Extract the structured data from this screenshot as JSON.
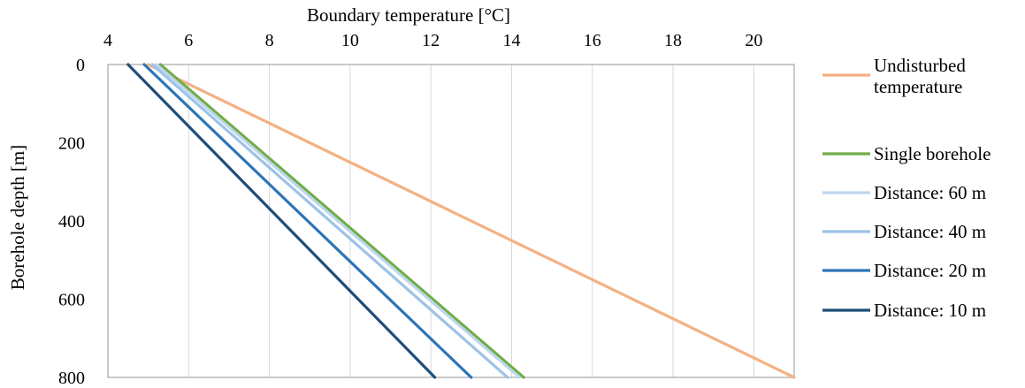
{
  "chart_data": {
    "type": "line",
    "xlabel": "Boundary temperature [°C]",
    "ylabel": "Borehole depth [m]",
    "xlim": [
      4,
      21
    ],
    "ylim": [
      0,
      800
    ],
    "y_reversed": true,
    "x_axis_position": "top",
    "x_ticks": [
      4,
      6,
      8,
      10,
      12,
      14,
      16,
      18,
      20
    ],
    "y_ticks": [
      0,
      200,
      400,
      600,
      800
    ],
    "grid": "vertical",
    "legend_position": "right",
    "series": [
      {
        "name": "Undisturbed temperature",
        "legend_lines": [
          "Undisturbed",
          "temperature"
        ],
        "color": "#f4b183",
        "points": [
          [
            5.0,
            0
          ],
          [
            21.0,
            800
          ]
        ]
      },
      {
        "name": "Single borehole",
        "color": "#70ad47",
        "points": [
          [
            5.3,
            0
          ],
          [
            14.3,
            800
          ]
        ]
      },
      {
        "name": "Distance: 60 m",
        "color": "#bdd7ee",
        "points": [
          [
            5.2,
            0
          ],
          [
            14.2,
            800
          ]
        ]
      },
      {
        "name": "Distance: 40 m",
        "color": "#9dc3e6",
        "points": [
          [
            5.1,
            0
          ],
          [
            13.9,
            800
          ]
        ]
      },
      {
        "name": "Distance: 20 m",
        "color": "#2e75b6",
        "points": [
          [
            4.9,
            0
          ],
          [
            13.0,
            800
          ]
        ]
      },
      {
        "name": "Distance: 10 m",
        "color": "#1f4e79",
        "points": [
          [
            4.5,
            0
          ],
          [
            12.1,
            800
          ]
        ]
      }
    ]
  }
}
